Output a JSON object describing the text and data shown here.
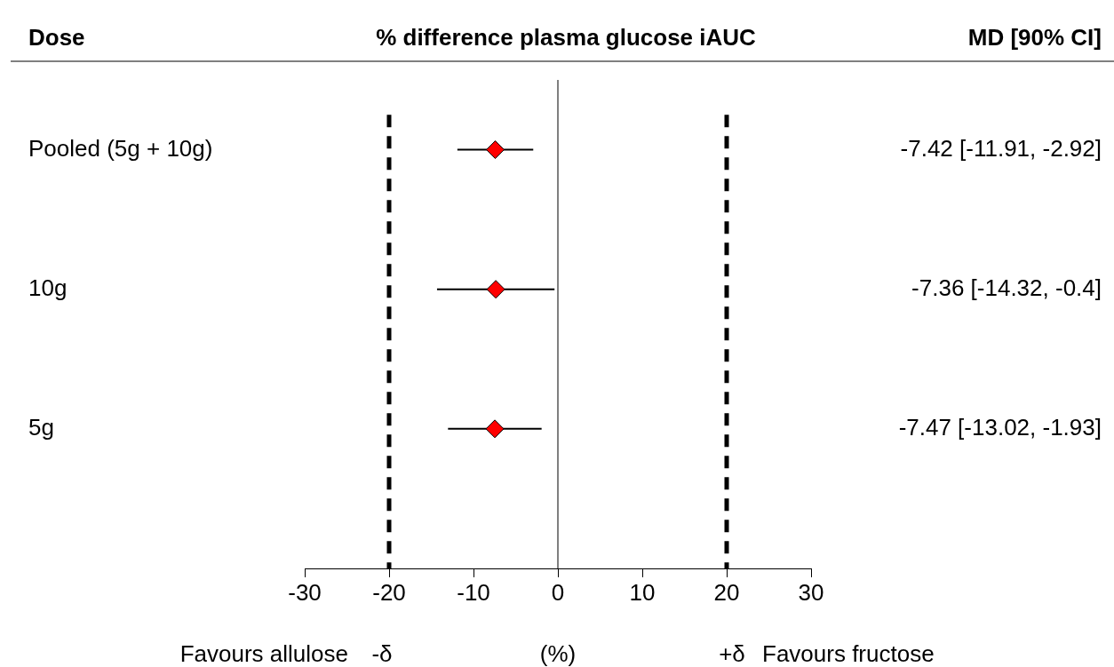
{
  "chart_data": {
    "type": "scatter",
    "orientation": "horizontal",
    "title": "% difference plasma glucose iAUC",
    "ylabel": "Dose",
    "xlabel": "(%)",
    "categories": [
      "Pooled (5g + 10g)",
      "10g",
      "5g"
    ],
    "values": [
      -7.42,
      -7.36,
      -7.47
    ],
    "errors": [
      [
        -11.91,
        -2.92
      ],
      [
        -14.32,
        -0.4
      ],
      [
        -13.02,
        -1.93
      ]
    ],
    "value_labels": [
      "-7.42 [-11.91, -2.92]",
      "-7.36 [-14.32, -0.4]",
      "-7.47 [-13.02, -1.93]"
    ],
    "color": "#ff0000",
    "marker": "diamond",
    "xlim": [
      -30,
      30
    ],
    "xticks": [
      -30,
      -20,
      -10,
      0,
      10,
      20,
      30
    ],
    "ref_lines": [
      {
        "axis": "x",
        "value": -20,
        "line_style": "dashed",
        "color": "#000000"
      },
      {
        "axis": "x",
        "value": 20,
        "line_style": "dashed",
        "color": "#000000"
      },
      {
        "axis": "x",
        "value": 0,
        "line_style": "solid",
        "color": "#000000"
      }
    ],
    "annotations": [
      "MD [90% CI]",
      "Favours allulose",
      "-δ",
      "+δ",
      "Favours fructose"
    ],
    "grid": false,
    "legend": false
  }
}
